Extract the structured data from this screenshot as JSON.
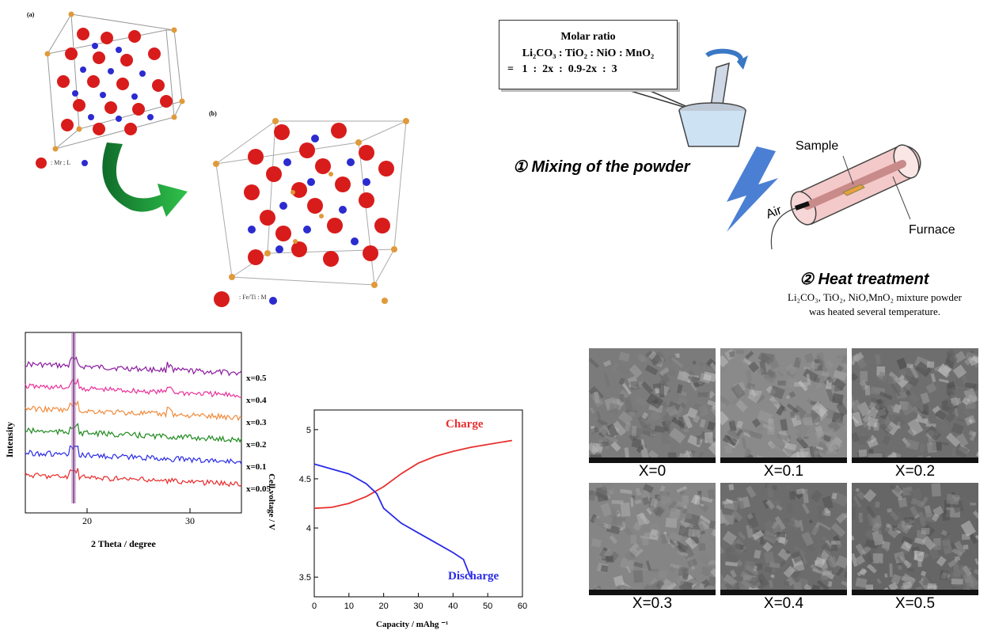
{
  "panel_a": {
    "label": "(a)",
    "legend": ": Mr ; L"
  },
  "panel_b": {
    "label": "(b)",
    "legend": ": Fe/Ti : M"
  },
  "molar_box": {
    "title": "Molar ratio",
    "formula": "Li₂CO₃ : TiO₂ : NiO : MnO₂",
    "ratio": "=   1  :  2x  :  0.9-2x  :  3"
  },
  "steps": {
    "mixing": "① Mixing of the powder",
    "heat": "② Heat treatment",
    "heat_desc_1": "Li₂CO₃, TiO₂, NiO,MnO₂ mixture powder",
    "heat_desc_2": "was heated several temperature."
  },
  "furnace": {
    "sample": "Sample",
    "air": "Air",
    "furnace": "Furnace"
  },
  "chart_data": [
    {
      "type": "line",
      "xlabel": "2 Theta / degree",
      "ylabel": "Intensity",
      "xlim": [
        14,
        35
      ],
      "x_ticks": [
        "20",
        "30"
      ],
      "series": [
        {
          "name": "x=0.5",
          "color": "#8a1a9e",
          "baseline": 0.5
        },
        {
          "name": "x=0.4",
          "color": "#e8309a",
          "baseline": 0.4
        },
        {
          "name": "x=0.3",
          "color": "#f08a3a",
          "baseline": 0.3
        },
        {
          "name": "x=0.2",
          "color": "#1e8a1e",
          "baseline": 0.2
        },
        {
          "name": "x=0.1",
          "color": "#2a2ae8",
          "baseline": 0.1
        },
        {
          "name": "x=0.05",
          "color": "#e82a2a",
          "baseline": 0.05
        }
      ],
      "peaks_deg": [
        18.7,
        28.0
      ]
    },
    {
      "type": "line",
      "xlabel": "Capacity / mAhg ⁻¹",
      "ylabel": "Cell voltage / V",
      "xlim": [
        0,
        60
      ],
      "ylim": [
        3.3,
        5.2
      ],
      "x_ticks": [
        "0",
        "10",
        "20",
        "30",
        "40",
        "50",
        "60"
      ],
      "y_ticks": [
        "3.5",
        "4",
        "4.5",
        "5"
      ],
      "series": [
        {
          "name": "Charge",
          "color": "#e83030",
          "x": [
            0,
            5,
            10,
            15,
            20,
            25,
            30,
            35,
            40,
            45,
            50,
            57
          ],
          "y": [
            4.2,
            4.21,
            4.25,
            4.32,
            4.42,
            4.55,
            4.66,
            4.73,
            4.78,
            4.82,
            4.85,
            4.89
          ]
        },
        {
          "name": "Discharge",
          "color": "#2a2ae8",
          "x": [
            0,
            5,
            10,
            15,
            18,
            20,
            25,
            30,
            35,
            40,
            43,
            45
          ],
          "y": [
            4.65,
            4.6,
            4.55,
            4.45,
            4.35,
            4.2,
            4.05,
            3.95,
            3.85,
            3.75,
            3.68,
            3.5
          ]
        }
      ]
    }
  ],
  "sem_images": [
    {
      "caption": "X=0",
      "tone": "#7b7b7b"
    },
    {
      "caption": "X=0.1",
      "tone": "#8a8a8a"
    },
    {
      "caption": "X=0.2",
      "tone": "#6e6e6e"
    },
    {
      "caption": "X=0.3",
      "tone": "#858585"
    },
    {
      "caption": "X=0.4",
      "tone": "#6c6c6c"
    },
    {
      "caption": "X=0.5",
      "tone": "#666666"
    }
  ]
}
